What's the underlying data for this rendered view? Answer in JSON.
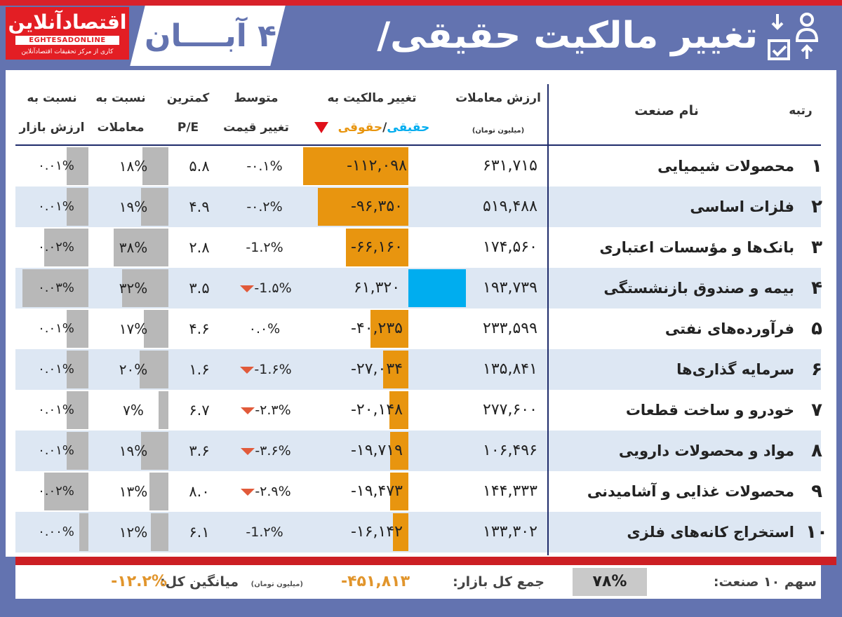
{
  "logo": {
    "name": "اقتصادآنلاین",
    "latin": "EGHTESADONLINE",
    "tagline": "کاری از مرکز تحقیقات اقتصادآنلاین"
  },
  "date": "۴ آبــــان",
  "title": "تغییر مالکیت حقیقی/حقوقی",
  "colors": {
    "header_bg": "#6373b0",
    "negative_bar": "#e8950f",
    "positive_bar": "#00adef",
    "ratio_bar": "#b8b8b8",
    "red": "#d8212a"
  },
  "columns": {
    "rank": "رتبه",
    "name": "نام صنعت",
    "value_l1": "ارزش معاملات",
    "value_unit": "(میلیون تومان)",
    "change_l1": "تغییر مالکیت به",
    "change_a": "حقیقی",
    "change_sep": "/",
    "change_b": "حقوقی",
    "avg_l1": "متوسط",
    "avg_l2": "تغییر قیمت",
    "pe_l1": "کمترین",
    "pe_l2": "P/E",
    "tr_l1": "نسبت به",
    "tr_l2": "معاملات",
    "mk_l1": "نسبت به",
    "mk_l2": "ارزش بازار"
  },
  "rows": [
    {
      "rank": "۱",
      "name": "محصولات شیمیایی",
      "value": "۶۳۱,۷۱۵",
      "change": "-۱۱۲,۰۹۸",
      "change_num": -112098,
      "avg": "-۰.۱%",
      "avg_down": false,
      "pe": "۵.۸",
      "trade": "۱۸%",
      "trade_num": 18,
      "market": "۰.۰۱%",
      "market_num": 0.01
    },
    {
      "rank": "۲",
      "name": "فلزات اساسی",
      "value": "۵۱۹,۴۸۸",
      "change": "-۹۶,۳۵۰",
      "change_num": -96350,
      "avg": "-۰.۲%",
      "avg_down": false,
      "pe": "۴.۹",
      "trade": "۱۹%",
      "trade_num": 19,
      "market": "۰.۰۱%",
      "market_num": 0.01
    },
    {
      "rank": "۳",
      "name": "بانک‌ها و مؤسسات اعتباری",
      "value": "۱۷۴,۵۶۰",
      "change": "-۶۶,۱۶۰",
      "change_num": -66160,
      "avg": "-1.۲%",
      "avg_down": false,
      "pe": "۲.۸",
      "trade": "۳۸%",
      "trade_num": 38,
      "market": "۰.۰۲%",
      "market_num": 0.02
    },
    {
      "rank": "۴",
      "name": "بیمه و صندوق بازنشستگی",
      "value": "۱۹۳,۷۳۹",
      "change": "۶۱,۳۲۰",
      "change_num": 61320,
      "avg": "-1.۵%",
      "avg_down": true,
      "pe": "۳.۵",
      "trade": "۳۲%",
      "trade_num": 32,
      "market": "۰.۰۳%",
      "market_num": 0.03
    },
    {
      "rank": "۵",
      "name": "فرآورده‌های نفتی",
      "value": "۲۳۳,۵۹۹",
      "change": "-۴۰,۲۳۵",
      "change_num": -40235,
      "avg": "۰.۰%",
      "avg_down": false,
      "pe": "۴.۶",
      "trade": "۱۷%",
      "trade_num": 17,
      "market": "۰.۰۱%",
      "market_num": 0.01
    },
    {
      "rank": "۶",
      "name": "سرمایه گذاری‌ها",
      "value": "۱۳۵,۸۴۱",
      "change": "-۲۷,۰۳۴",
      "change_num": -27034,
      "avg": "-1.۶%",
      "avg_down": true,
      "pe": "۱.۶",
      "trade": "۲۰%",
      "trade_num": 20,
      "market": "۰.۰۱%",
      "market_num": 0.01
    },
    {
      "rank": "۷",
      "name": "خودرو و ساخت قطعات",
      "value": "۲۷۷,۶۰۰",
      "change": "-۲۰,۱۴۸",
      "change_num": -20148,
      "avg": "-۲.۳%",
      "avg_down": true,
      "pe": "۶.۷",
      "trade": "۷%",
      "trade_num": 7,
      "market": "۰.۰۱%",
      "market_num": 0.01
    },
    {
      "rank": "۸",
      "name": "مواد و محصولات دارویی",
      "value": "۱۰۶,۴۹۶",
      "change": "-۱۹,۷۱۹",
      "change_num": -19719,
      "avg": "-۳.۶%",
      "avg_down": true,
      "pe": "۳.۶",
      "trade": "۱۹%",
      "trade_num": 19,
      "market": "۰.۰۱%",
      "market_num": 0.01
    },
    {
      "rank": "۹",
      "name": "محصولات غذایی و آشامیدنی",
      "value": "۱۴۴,۳۳۳",
      "change": "-۱۹,۴۷۳",
      "change_num": -19473,
      "avg": "-۲.۹%",
      "avg_down": true,
      "pe": "۸.۰",
      "trade": "۱۳%",
      "trade_num": 13,
      "market": "۰.۰۲%",
      "market_num": 0.02
    },
    {
      "rank": "۱۰",
      "name": "استخراج کانه‌های فلزی",
      "value": "۱۳۳,۳۰۲",
      "change": "-۱۶,۱۴۲",
      "change_num": -16142,
      "avg": "-1.۲%",
      "avg_down": false,
      "pe": "۶.۱",
      "trade": "۱۲%",
      "trade_num": 12,
      "market": "۰.۰۰%",
      "market_num": 0.004
    }
  ],
  "footer": {
    "share_label": "سهم ۱۰ صنعت:",
    "share_value": "۷۸%",
    "total_label": "جمع کل بازار:",
    "total_value": "-۴۵۱,۸۱۳",
    "unit": "(میلیون تومان)",
    "avg_label": "میانگین کل:",
    "avg_value": "-۱۲.۲%"
  }
}
